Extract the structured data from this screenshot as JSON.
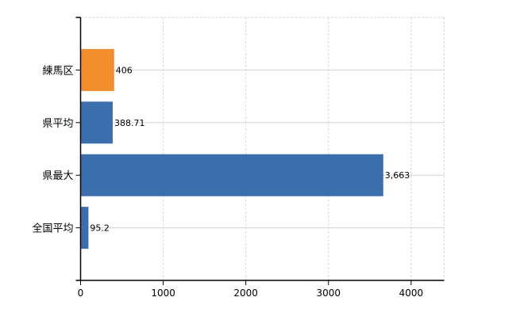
{
  "chart_data": {
    "type": "bar",
    "orientation": "horizontal",
    "title": "",
    "xlabel": "",
    "ylabel": "",
    "categories": [
      "練馬区",
      "県平均",
      "県最大",
      "全国平均"
    ],
    "values": [
      406,
      388.71,
      3663,
      95.2
    ],
    "data_labels": [
      "406",
      "388.71",
      "3,663",
      "95.2"
    ],
    "bar_colors": [
      "#f28e2c",
      "#3b6ead",
      "#3b6ead",
      "#3b6ead"
    ],
    "xlim": [
      0,
      4400
    ],
    "x_ticks": [
      0,
      1000,
      2000,
      3000,
      4000
    ],
    "x_tick_labels": [
      "0",
      "1000",
      "2000",
      "3000",
      "4000"
    ],
    "grid": true,
    "legend": "none"
  }
}
